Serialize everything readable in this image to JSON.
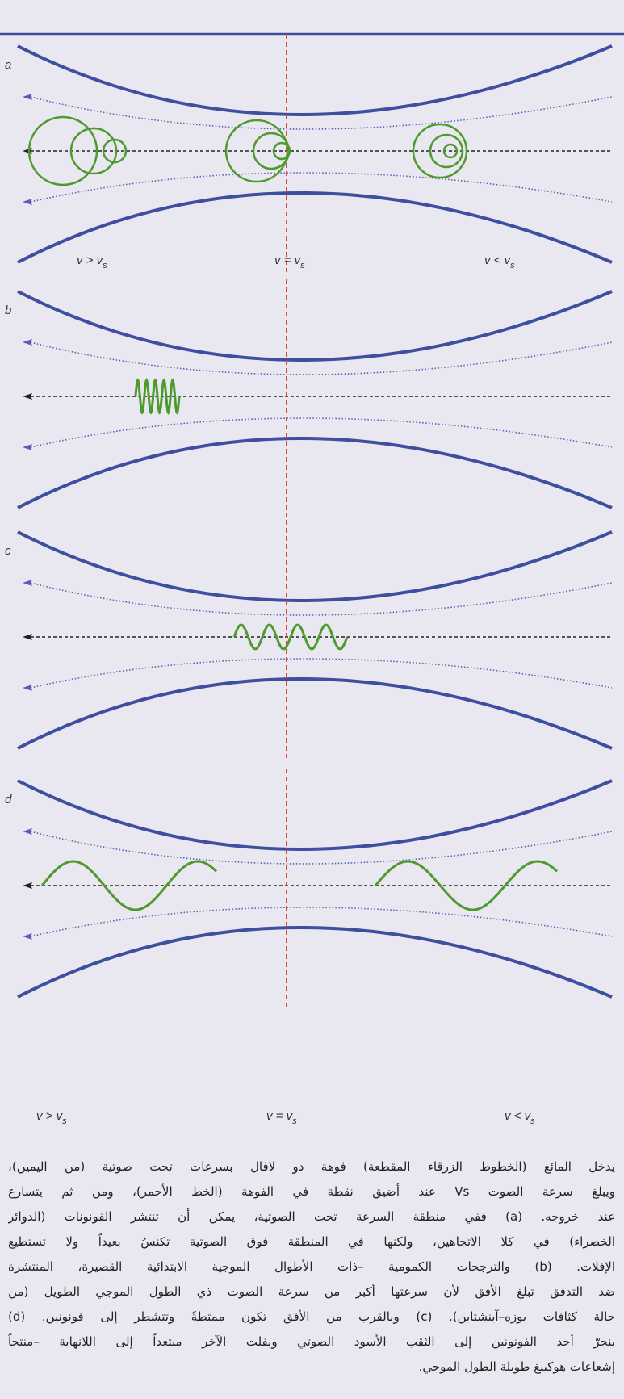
{
  "panels": [
    {
      "label": "a",
      "speeds": [
        {
          "main": "v > v",
          "sub": "s"
        },
        {
          "main": "v = v",
          "sub": "s"
        },
        {
          "main": "v < v",
          "sub": "s"
        }
      ]
    },
    {
      "label": "b"
    },
    {
      "label": "c"
    },
    {
      "label": "d",
      "speeds": [
        {
          "main": "v > v",
          "sub": "s"
        },
        {
          "main": "v = v",
          "sub": "s"
        },
        {
          "main": "v < v",
          "sub": "s"
        }
      ]
    }
  ],
  "caption": [
    "يدخل المائع (الخطوط الزرقاء المقطعة) فوهة دو لافال بسرعات تحت صوتية (من اليمين)،",
    "ويبلغ سرعة الصوت Vs عند أضيق نقطة في الفوهة (الخط الأحمر)، ومن ثم يتسارع",
    "عند خروجه. (a) ففي منطقة السرعة تحت الصوتية، يمكن أن تنتشر الفونونات (الدوائر",
    "الخضراء) في كلا الاتجاهين، ولكنها في المنطقة فوق الصوتية تكنسُ بعيداً ولا تستطيع",
    "الإفلات. (b) والترجحات الكمومية –ذات الأطوال الموجية الابتدائية القصيرة، المنتشرة",
    "ضد التدفق تبلغ الأفق لأن سرعتها أكبر من سرعة الصوت ذي الطول الموجي الطويل (من",
    "حالة كثافات بوزه–آينشتاين). (c) وبالقرب من الأفق تكون ممتطةً وتتشطر إلى فونونين. (d)",
    "ينجرّ أحد الفونونين إلى الثقب الأسود الصوتي ويفلت الآخر مبتعداً إلى اللانهاية –منتجاً",
    "إشعاعات هوكينغ طويلة الطول الموجي."
  ]
}
